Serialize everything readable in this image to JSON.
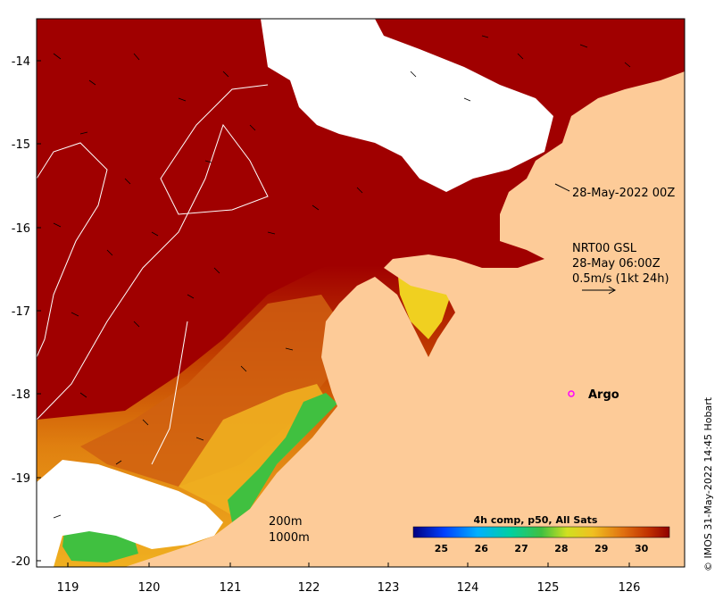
{
  "axes": {
    "x_ticks": [
      "119",
      "120",
      "121",
      "122",
      "123",
      "124",
      "125",
      "126"
    ],
    "y_ticks": [
      "-14",
      "-15",
      "-16",
      "-17",
      "-18",
      "-19",
      "-20"
    ]
  },
  "annotations": {
    "argo_time": "28-May-2022 00Z",
    "current_source": "NRT00 GSL",
    "current_time": "28-May 06:00Z",
    "current_scale": "0.5m/s (1kt 24h)",
    "argo_label": "Argo",
    "contour_200": "200m",
    "contour_1000": "1000m"
  },
  "colorbar": {
    "title": "4h comp, p50, All Sats",
    "ticks": [
      "25",
      "26",
      "27",
      "28",
      "29",
      "30"
    ],
    "min": 24.3,
    "max": 30.7
  },
  "credit": "© IMOS 31-May-2022 14:45 Hobart",
  "colors": {
    "land": "#fdcb98",
    "cloud": "#ffffff",
    "sst_hot": "#a00000",
    "sst_warm": "#c84000",
    "sst_mid": "#e88010",
    "sst_cool": "#f0c020",
    "sst_green": "#40c040",
    "argo": "#ff00ff"
  }
}
